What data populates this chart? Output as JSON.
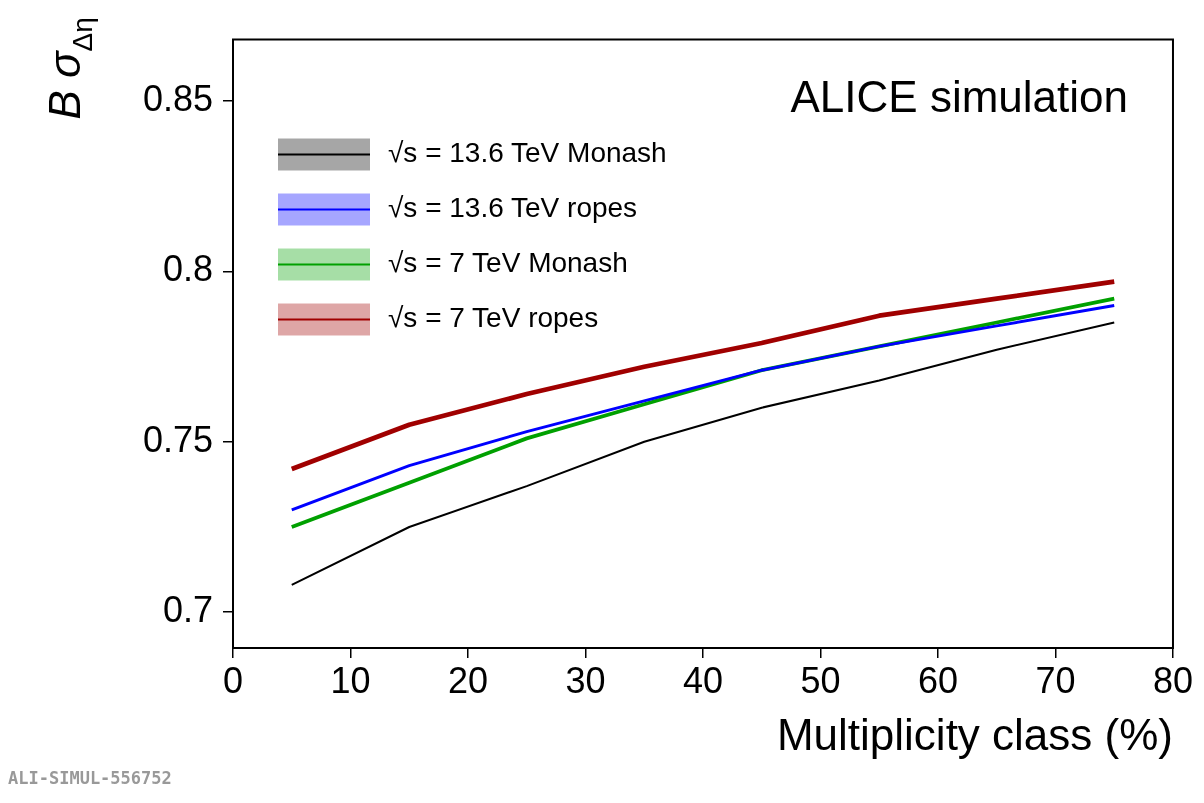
{
  "chart_data": {
    "type": "line",
    "title": "ALICE simulation",
    "xlabel": "Multiplicity class (%)",
    "ylabel": "B σ$_{Δη}$",
    "x": [
      5,
      15,
      25,
      35,
      45,
      55,
      65,
      75
    ],
    "series": [
      {
        "name": "√s = 13.6 TeV Monash",
        "color": "#000000",
        "values": [
          0.708,
          0.725,
          0.737,
          0.75,
          0.76,
          0.768,
          0.777,
          0.785
        ]
      },
      {
        "name": "√s = 13.6 TeV ropes",
        "color": "#0000ff",
        "values": [
          0.73,
          0.743,
          0.753,
          0.762,
          0.771,
          0.778,
          0.784,
          0.79
        ]
      },
      {
        "name": "√s = 7 TeV Monash",
        "color": "#00a000",
        "values": [
          0.725,
          0.738,
          0.751,
          0.761,
          0.771,
          0.778,
          0.785,
          0.792
        ]
      },
      {
        "name": "√s = 7 TeV ropes",
        "color": "#a00000",
        "values": [
          0.742,
          0.755,
          0.764,
          0.772,
          0.779,
          0.787,
          0.792,
          0.797
        ]
      }
    ],
    "xlim": [
      0,
      80
    ],
    "xticks": [
      0,
      10,
      20,
      30,
      40,
      50,
      60,
      70,
      80
    ],
    "ylim": [
      0.6895,
      0.868
    ],
    "yticks": [
      {
        "value": 0.7,
        "label": "0.7"
      },
      {
        "value": 0.75,
        "label": "0.75"
      },
      {
        "value": 0.8,
        "label": "0.8"
      },
      {
        "value": 0.85,
        "label": "0.85"
      }
    ],
    "grid": false,
    "legend": "top left",
    "marker": "none",
    "line_style": "solid",
    "annotations": [
      "ALI-SIMUL-556752"
    ]
  }
}
